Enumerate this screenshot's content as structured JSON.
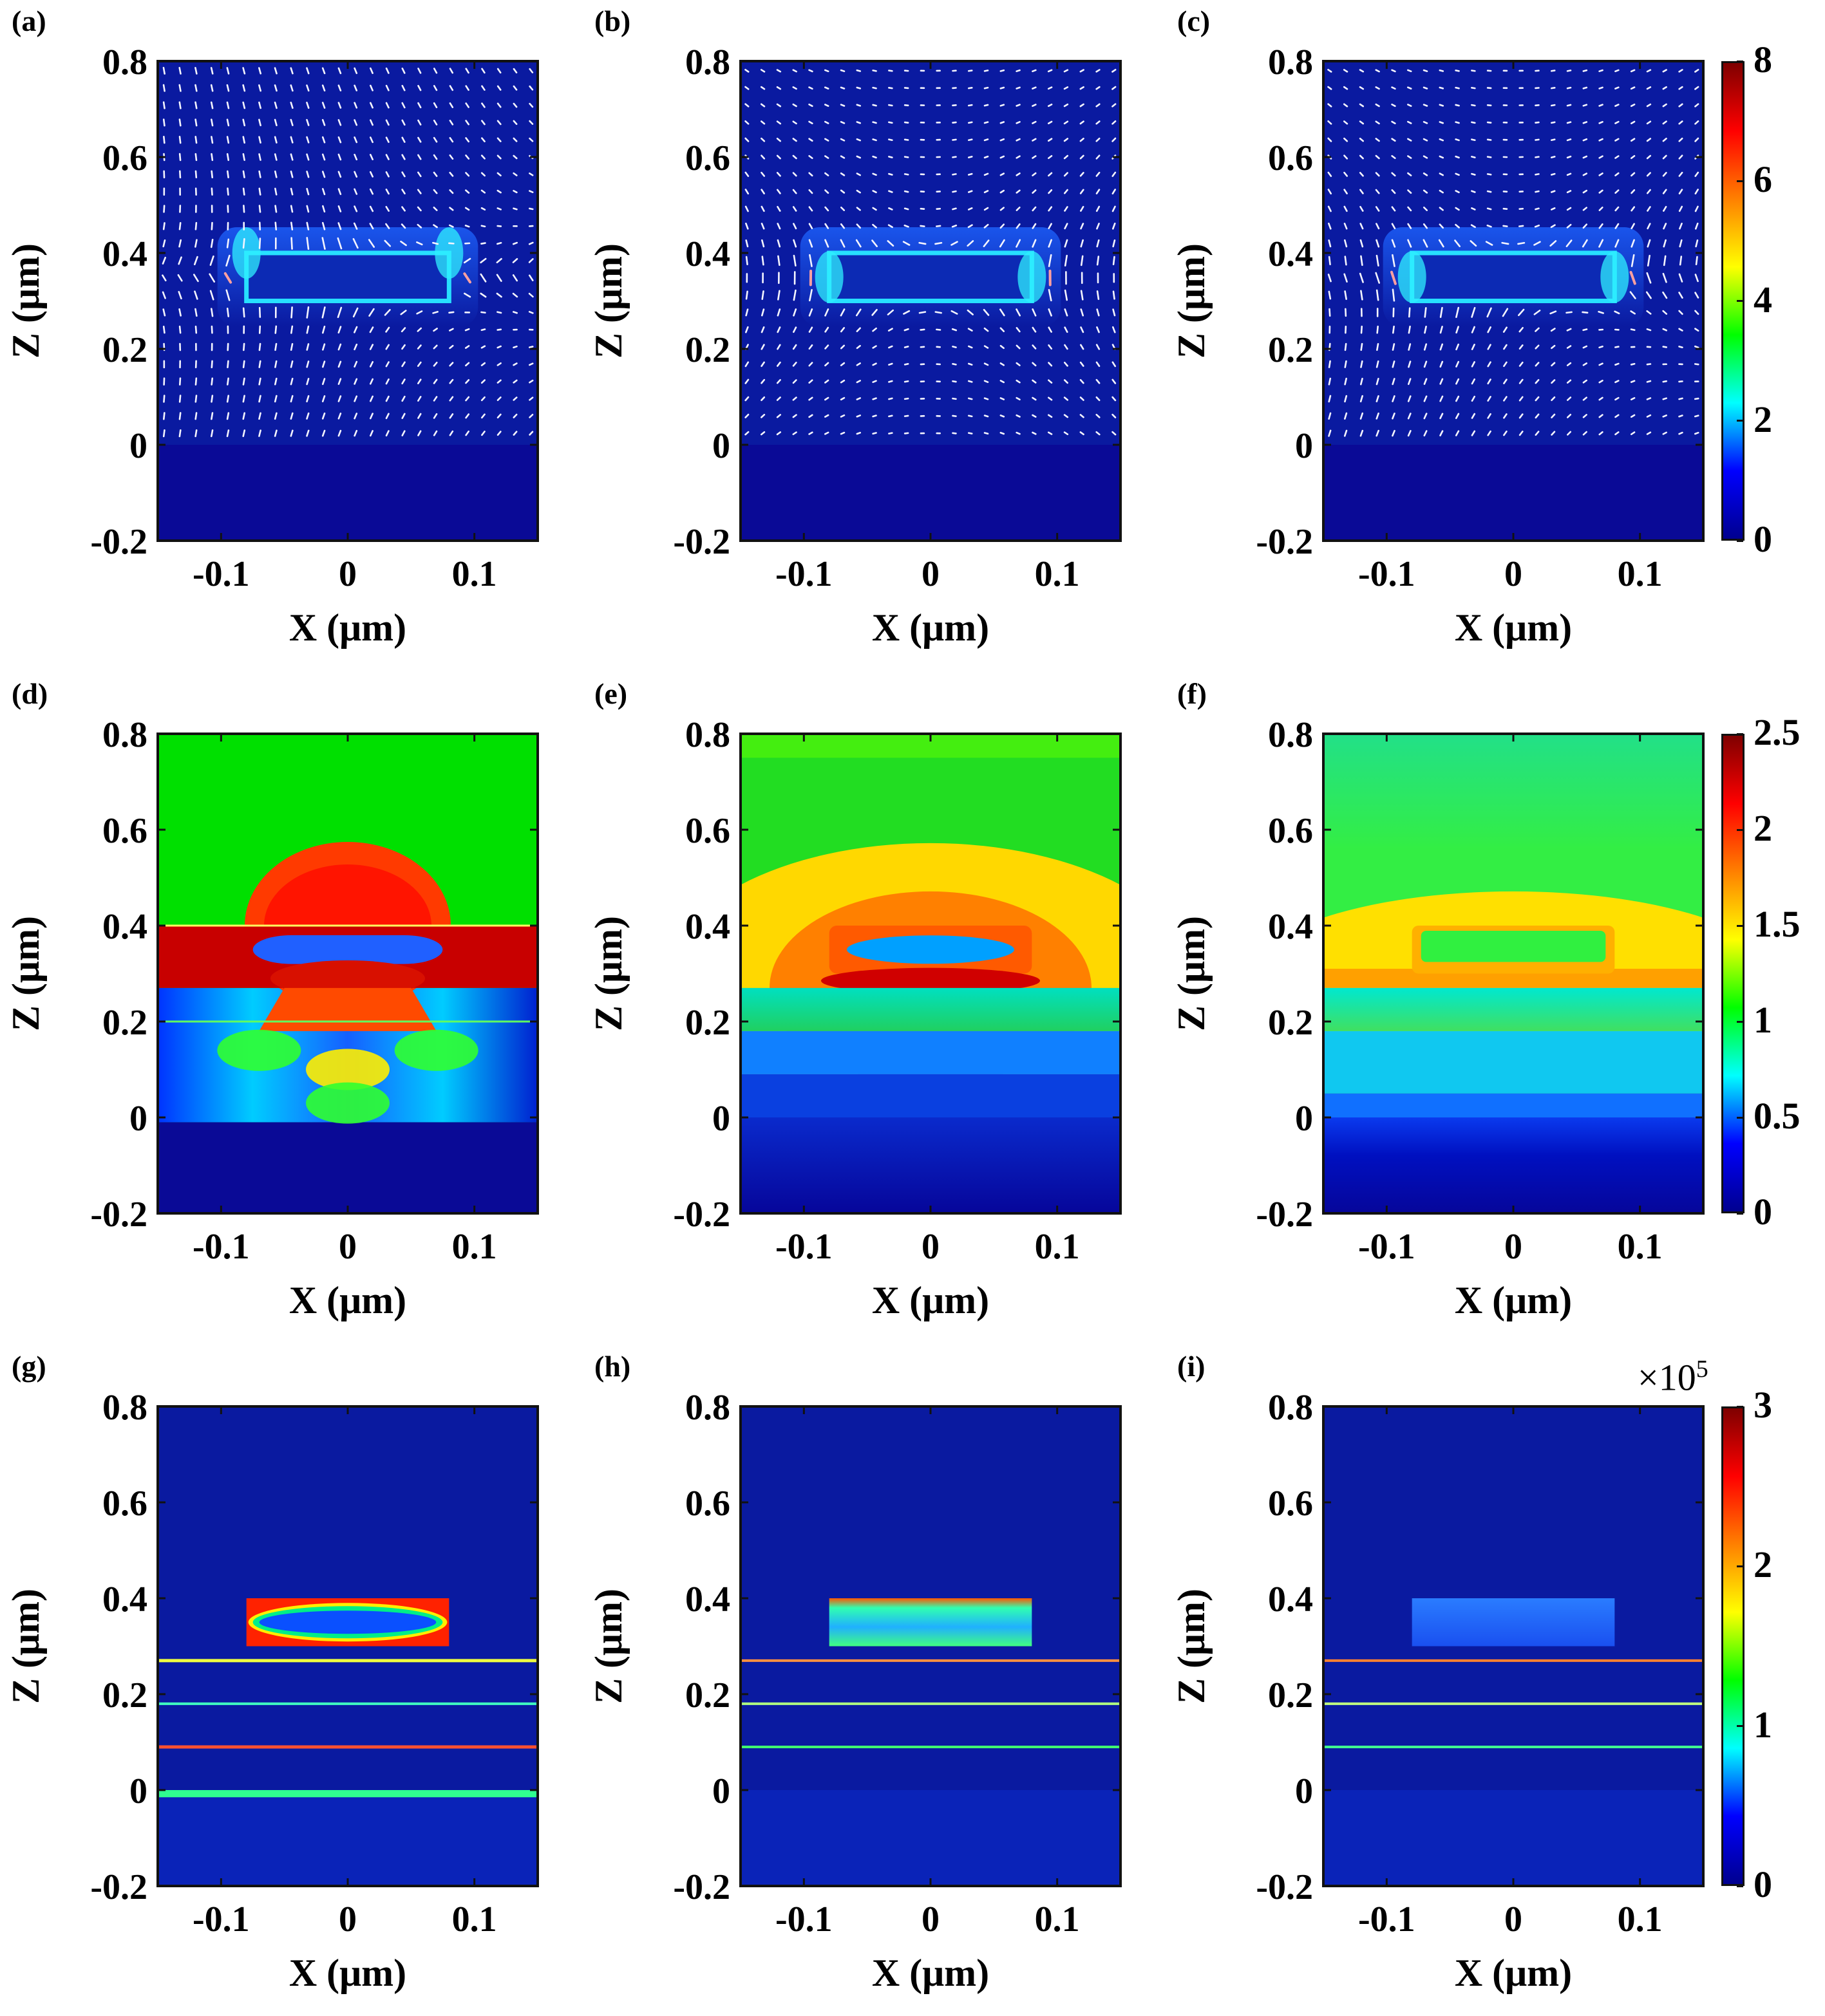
{
  "chart_data": {
    "type": "heatmap",
    "layout": "3x3 grid of field maps with vector arrows in top row",
    "x_axis": {
      "label": "X (μm)",
      "range": [
        -0.15,
        0.15
      ],
      "ticks": [
        -0.1,
        0,
        0.1
      ],
      "tick_labels": [
        "-0.1",
        "0",
        "0.1"
      ]
    },
    "z_axis": {
      "label": "Z (μm)",
      "range": [
        -0.2,
        0.8
      ],
      "ticks": [
        0.8,
        0.6,
        0.4,
        0.2,
        0,
        -0.2
      ],
      "tick_labels": [
        "0.8",
        "0.6",
        "0.4",
        "0.2",
        "0",
        "-0.2"
      ]
    },
    "structure": {
      "rod_x": [
        -0.08,
        0.08
      ],
      "rod_z": [
        0.3,
        0.4
      ],
      "layer_interfaces_z": [
        0.27,
        0.18,
        0.09,
        0.0
      ]
    },
    "rows": [
      {
        "panels": [
          "(a)",
          "(b)",
          "(c)"
        ],
        "colorbar": {
          "ticks": [
            "8",
            "6",
            "4",
            "2",
            "0"
          ],
          "range": [
            0,
            8
          ],
          "multiplier": ""
        },
        "arrows": true
      },
      {
        "panels": [
          "(d)",
          "(e)",
          "(f)"
        ],
        "colorbar": {
          "ticks": [
            "2.5",
            "2",
            "1.5",
            "1",
            "0.5",
            "0"
          ],
          "range": [
            0,
            2.5
          ],
          "multiplier": ""
        },
        "arrows": false
      },
      {
        "panels": [
          "(g)",
          "(h)",
          "(i)"
        ],
        "colorbar": {
          "ticks": [
            "3",
            "2",
            "1",
            "0"
          ],
          "range": [
            0,
            3
          ],
          "multiplier": "×10",
          "multiplier_exp": "5"
        },
        "arrows": false
      }
    ],
    "colormap": "jet",
    "colormap_stops": [
      "#00008f",
      "#0000ff",
      "#00ffff",
      "#00ff00",
      "#ffff00",
      "#ff8000",
      "#ff0000",
      "#7f0000"
    ]
  }
}
